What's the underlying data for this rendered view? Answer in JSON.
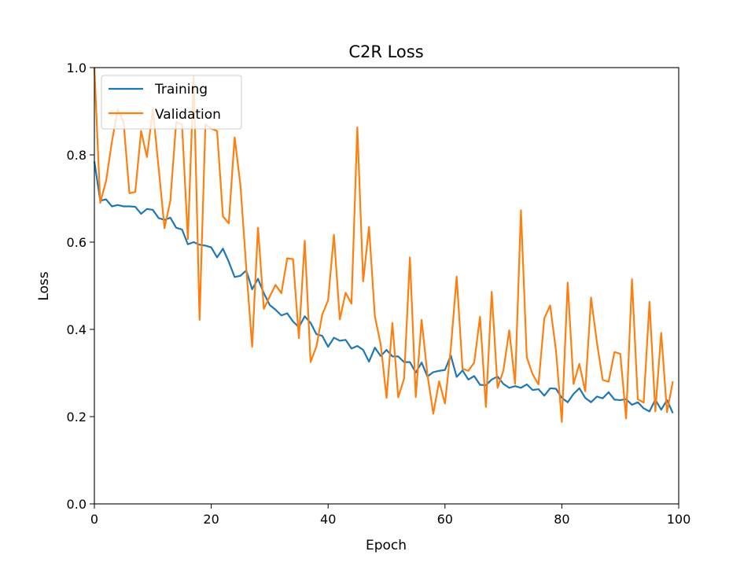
{
  "chart_data": {
    "type": "line",
    "title": "C2R Loss",
    "xlabel": "Epoch",
    "ylabel": "Loss",
    "xlim": [
      0,
      100
    ],
    "ylim": [
      0,
      1.0
    ],
    "xticks": [
      "0",
      "20",
      "40",
      "60",
      "80",
      "100"
    ],
    "yticks": [
      "0.0",
      "0.2",
      "0.4",
      "0.6",
      "0.8",
      "1.0"
    ],
    "grid": false,
    "legend": "top-left",
    "series": [
      {
        "name": "Training",
        "color": "#1f77b4",
        "values": [
          0.785,
          0.695,
          0.698,
          0.682,
          0.685,
          0.682,
          0.682,
          0.681,
          0.665,
          0.676,
          0.674,
          0.655,
          0.651,
          0.656,
          0.633,
          0.629,
          0.595,
          0.6,
          0.594,
          0.592,
          0.588,
          0.565,
          0.585,
          0.555,
          0.52,
          0.523,
          0.535,
          0.492,
          0.516,
          0.483,
          0.456,
          0.445,
          0.432,
          0.437,
          0.418,
          0.405,
          0.43,
          0.415,
          0.389,
          0.385,
          0.36,
          0.381,
          0.374,
          0.376,
          0.356,
          0.362,
          0.353,
          0.326,
          0.358,
          0.339,
          0.353,
          0.338,
          0.338,
          0.325,
          0.325,
          0.301,
          0.324,
          0.292,
          0.302,
          0.305,
          0.307,
          0.34,
          0.291,
          0.306,
          0.285,
          0.293,
          0.273,
          0.272,
          0.285,
          0.292,
          0.275,
          0.266,
          0.27,
          0.266,
          0.274,
          0.261,
          0.263,
          0.248,
          0.265,
          0.264,
          0.243,
          0.233,
          0.252,
          0.265,
          0.243,
          0.233,
          0.246,
          0.242,
          0.256,
          0.239,
          0.238,
          0.24,
          0.227,
          0.233,
          0.219,
          0.212,
          0.239,
          0.216,
          0.238,
          0.208
        ]
      },
      {
        "name": "Validation",
        "color": "#ff7f0e",
        "values": [
          1.0,
          0.69,
          0.74,
          0.83,
          0.905,
          0.875,
          0.712,
          0.715,
          0.855,
          0.795,
          0.905,
          0.77,
          0.632,
          0.695,
          0.875,
          0.87,
          0.607,
          0.98,
          0.422,
          0.87,
          0.86,
          0.855,
          0.659,
          0.643,
          0.84,
          0.73,
          0.54,
          0.36,
          0.633,
          0.447,
          0.475,
          0.502,
          0.483,
          0.563,
          0.561,
          0.38,
          0.603,
          0.325,
          0.361,
          0.434,
          0.467,
          0.617,
          0.423,
          0.484,
          0.459,
          0.863,
          0.51,
          0.635,
          0.43,
          0.366,
          0.243,
          0.415,
          0.244,
          0.287,
          0.565,
          0.245,
          0.422,
          0.296,
          0.207,
          0.281,
          0.23,
          0.356,
          0.521,
          0.31,
          0.305,
          0.324,
          0.429,
          0.222,
          0.486,
          0.266,
          0.306,
          0.398,
          0.275,
          0.673,
          0.336,
          0.297,
          0.274,
          0.425,
          0.455,
          0.351,
          0.188,
          0.507,
          0.275,
          0.321,
          0.258,
          0.473,
          0.37,
          0.284,
          0.28,
          0.348,
          0.344,
          0.196,
          0.515,
          0.24,
          0.232,
          0.463,
          0.212,
          0.392,
          0.21,
          0.281
        ]
      }
    ]
  }
}
